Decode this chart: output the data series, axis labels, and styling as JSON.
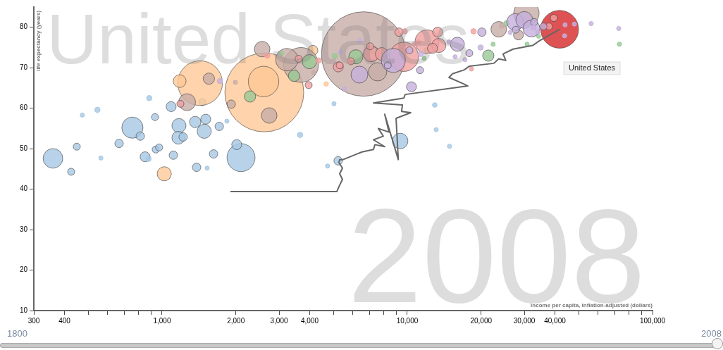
{
  "chart_data": {
    "type": "bubble",
    "xlabel": "income per capita, inflation-adjusted (dollars)",
    "ylabel": "life expectancy (years)",
    "log": "x",
    "grid": false,
    "legend": false,
    "xlim": [
      300,
      100000
    ],
    "ylim": [
      10,
      85
    ],
    "xticks": [
      300,
      400,
      {
        "value": 500,
        "label": null
      },
      {
        "value": 600,
        "label": null
      },
      {
        "value": 700,
        "label": null
      },
      {
        "value": 800,
        "label": null
      },
      {
        "value": 900,
        "label": null
      },
      {
        "value": 1000,
        "label": "1,000"
      },
      {
        "value": 2000,
        "label": "2,000"
      },
      {
        "value": 3000,
        "label": "3,000"
      },
      {
        "value": 4000,
        "label": "4,000"
      },
      {
        "value": 5000,
        "label": null
      },
      {
        "value": 6000,
        "label": null
      },
      {
        "value": 7000,
        "label": null
      },
      {
        "value": 8000,
        "label": null
      },
      {
        "value": 9000,
        "label": null
      },
      {
        "value": 10000,
        "label": "10,000"
      },
      {
        "value": 20000,
        "label": "20,000"
      },
      {
        "value": 30000,
        "label": "30,000"
      },
      {
        "value": 40000,
        "label": "40,000"
      },
      {
        "value": 50000,
        "label": null
      },
      {
        "value": 60000,
        "label": null
      },
      {
        "value": 70000,
        "label": null
      },
      {
        "value": 80000,
        "label": null
      },
      {
        "value": 90000,
        "label": null
      },
      {
        "value": 100000,
        "label": "100,000"
      }
    ],
    "yticks": [
      10,
      20,
      30,
      40,
      50,
      60,
      70,
      80
    ],
    "annotations": [
      "United States",
      "2008",
      "United States",
      "1800",
      "2008"
    ],
    "series": [
      {
        "color": "#d62728",
        "x": [
          41800
        ],
        "values": [
          79.5
        ],
        "sizes": [
          0.2
        ]
      },
      {
        "color": "#a6c8e3",
        "x": [
          2099,
          757,
          359,
          9350,
          1172,
          1486,
          1165,
          1365,
          853,
          1089,
          1507,
          2016,
          668,
          815,
          1112,
          1219,
          1383,
          1622,
          1711,
          5224,
          426,
          449,
          936,
          942,
          973,
          1459,
          545,
          881,
          887,
          3656,
          473,
          1838,
          12940,
          563,
          1527,
          5024,
          4730,
          13120,
          14860
        ],
        "values": [
          47.8,
          55.2,
          47.6,
          51.9,
          55.7,
          54.3,
          52.7,
          56.6,
          48.0,
          60.4,
          57.3,
          51.0,
          51.3,
          53.1,
          48.4,
          52.9,
          45.4,
          48.7,
          55.5,
          47.0,
          44.3,
          50.5,
          57.8,
          49.8,
          50.3,
          61.5,
          59.6,
          47.5,
          62.5,
          53.4,
          58.3,
          56.8,
          60.8,
          47.7,
          45.2,
          61.1,
          45.7,
          54.7,
          50.6
        ],
        "sizes": [
          0.11,
          0.063,
          0.054,
          0.034,
          0.028,
          0.028,
          0.023,
          0.018,
          0.014,
          0.014,
          0.014,
          0.014,
          0.01,
          0.01,
          0.01,
          0.01,
          0.01,
          0.01,
          0.01,
          0.01,
          0.007,
          0.007,
          0.007,
          0.007,
          0.007,
          0.007,
          0.004,
          0.004,
          0.004,
          0.004,
          0.0025,
          0.0025,
          0.003,
          0.0025,
          0.0025,
          0.0025,
          0.0025,
          0.0025,
          0.0025
        ]
      },
      {
        "color": "#ffc896",
        "x": [
          2612,
          1429,
          2594,
          1021,
          1180,
          4120,
          4670
        ],
        "values": [
          63.9,
          66.2,
          66.6,
          43.8,
          66.7,
          74.3,
          66.0
        ],
        "sizes": [
          0.87,
          0.28,
          0.13,
          0.028,
          0.023,
          0.014,
          0.003
        ]
      },
      {
        "color": "#c8ada8",
        "x": [
          6640,
          3686,
          30600,
          3228,
          7570,
          1265,
          2735,
          2560,
          23600,
          1552,
          28400,
          1914,
          24300,
          4150,
          1990
        ],
        "values": [
          73.4,
          70.7,
          83.5,
          72.0,
          69.0,
          61.5,
          58.2,
          74.6,
          79.5,
          67.3,
          78.1,
          61.0,
          80.4,
          68.8,
          66.4
        ],
        "sizes": [
          1,
          0.17,
          0.09,
          0.071,
          0.047,
          0.04,
          0.034,
          0.034,
          0.034,
          0.018,
          0.014,
          0.01,
          0.004,
          0.0025,
          0.0025
        ]
      },
      {
        "color": "#98c995",
        "x": [
          6170,
          3990,
          2284,
          3452,
          21400,
          7330,
          5060,
          11970,
          25400,
          3076,
          11720,
          22390,
          34300,
          30800,
          73300
        ],
        "values": [
          72.7,
          71.5,
          62.9,
          68.0,
          73.0,
          74.3,
          72.9,
          74.3,
          81.0,
          73.6,
          72.3,
          75.8,
          77.8,
          75.8,
          75.8
        ],
        "sizes": [
          0.028,
          0.028,
          0.018,
          0.018,
          0.018,
          0.007,
          0.004,
          0.004,
          0.004,
          0.0025,
          0.0025,
          0.0025,
          0.0025,
          0.0025,
          0.0025
        ]
      },
      {
        "color": "#f0a0a0",
        "x": [
          9690,
          12030,
          7130,
          13450,
          7870,
          5230,
          13300,
          12670,
          9250,
          1188,
          3605,
          3960,
          5890,
          7050,
          5300,
          37800,
          39600,
          2686,
          4350,
          9760,
          5850,
          18620,
          11100,
          18270,
          10680
        ],
        "values": [
          72.7,
          76.4,
          73.4,
          75.5,
          73.4,
          70.2,
          78.8,
          74.8,
          78.8,
          61.1,
          72.2,
          65.7,
          71.6,
          75.3,
          70.6,
          80.2,
          82.3,
          73.0,
          71.8,
          79.0,
          71.6,
          79.0,
          76.4,
          69.7,
          75.8
        ],
        "sizes": [
          0.12,
          0.08,
          0.034,
          0.028,
          0.023,
          0.014,
          0.014,
          0.014,
          0.01,
          0.007,
          0.007,
          0.007,
          0.007,
          0.007,
          0.007,
          0.007,
          0.007,
          0.004,
          0.004,
          0.004,
          0.004,
          0.004,
          0.0025,
          0.0025,
          0.0025
        ]
      },
      {
        "color": "#c5b0dc",
        "x": [
          8770,
          6380,
          27540,
          30000,
          32100,
          16000,
          10400,
          20150,
          8320,
          10200,
          11270,
          17900,
          27700,
          32900,
          35900,
          1722,
          11350,
          19900,
          32700,
          6380,
          5330,
          5550,
          14790,
          15670,
          17200,
          26300,
          34000,
          44000,
          43800,
          48000,
          56200,
          72800
        ],
        "values": [
          71.8,
          68.3,
          81.3,
          81.8,
          79.7,
          75.8,
          65.3,
          78.8,
          70.6,
          74.3,
          69.4,
          73.6,
          79.4,
          81.3,
          80.2,
          66.7,
          73.4,
          75.0,
          79.9,
          76.7,
          73.9,
          64.8,
          76.4,
          72.7,
          72.0,
          78.7,
          78.8,
          80.6,
          77.9,
          80.8,
          80.9,
          79.7
        ],
        "sizes": [
          0.08,
          0.04,
          0.04,
          0.04,
          0.04,
          0.028,
          0.014,
          0.01,
          0.007,
          0.007,
          0.007,
          0.007,
          0.007,
          0.007,
          0.007,
          0.004,
          0.004,
          0.004,
          0.004,
          0.0025,
          0.0025,
          0.0025,
          0.0025,
          0.0025,
          0.0025,
          0.0025,
          0.0025,
          0.0025,
          0.0025,
          0.0025,
          0.0025,
          0.0025
        ]
      },
      {
        "type": "line",
        "color": "#666666",
        "x": [
          1900,
          5160,
          5300,
          5440,
          5300,
          5440,
          5260,
          5300,
          5470,
          6540,
          7280,
          7380,
          8090,
          7280,
          7980,
          7620,
          8420,
          8090,
          9190,
          9000,
          10330,
          9480,
          9550,
          7280,
          9680,
          9800,
          14590,
          17660,
          16980,
          14790,
          15280,
          17100,
          17910,
          22540,
          23600,
          25210,
          24580,
          26980,
          32450,
          34670,
          41800
        ],
        "values": [
          39.4,
          39.4,
          41.0,
          42.4,
          43.8,
          45.2,
          46.6,
          47.3,
          47.3,
          49.2,
          49.8,
          51.0,
          50.5,
          52.2,
          53.1,
          55.0,
          54.1,
          58.5,
          47.3,
          57.5,
          58.9,
          59.2,
          60.8,
          61.3,
          62.5,
          63.4,
          64.8,
          65.5,
          66.0,
          67.6,
          68.5,
          69.5,
          70.4,
          71.1,
          72.2,
          71.8,
          73.4,
          74.6,
          75.5,
          76.7,
          79.5
        ]
      }
    ]
  }
}
